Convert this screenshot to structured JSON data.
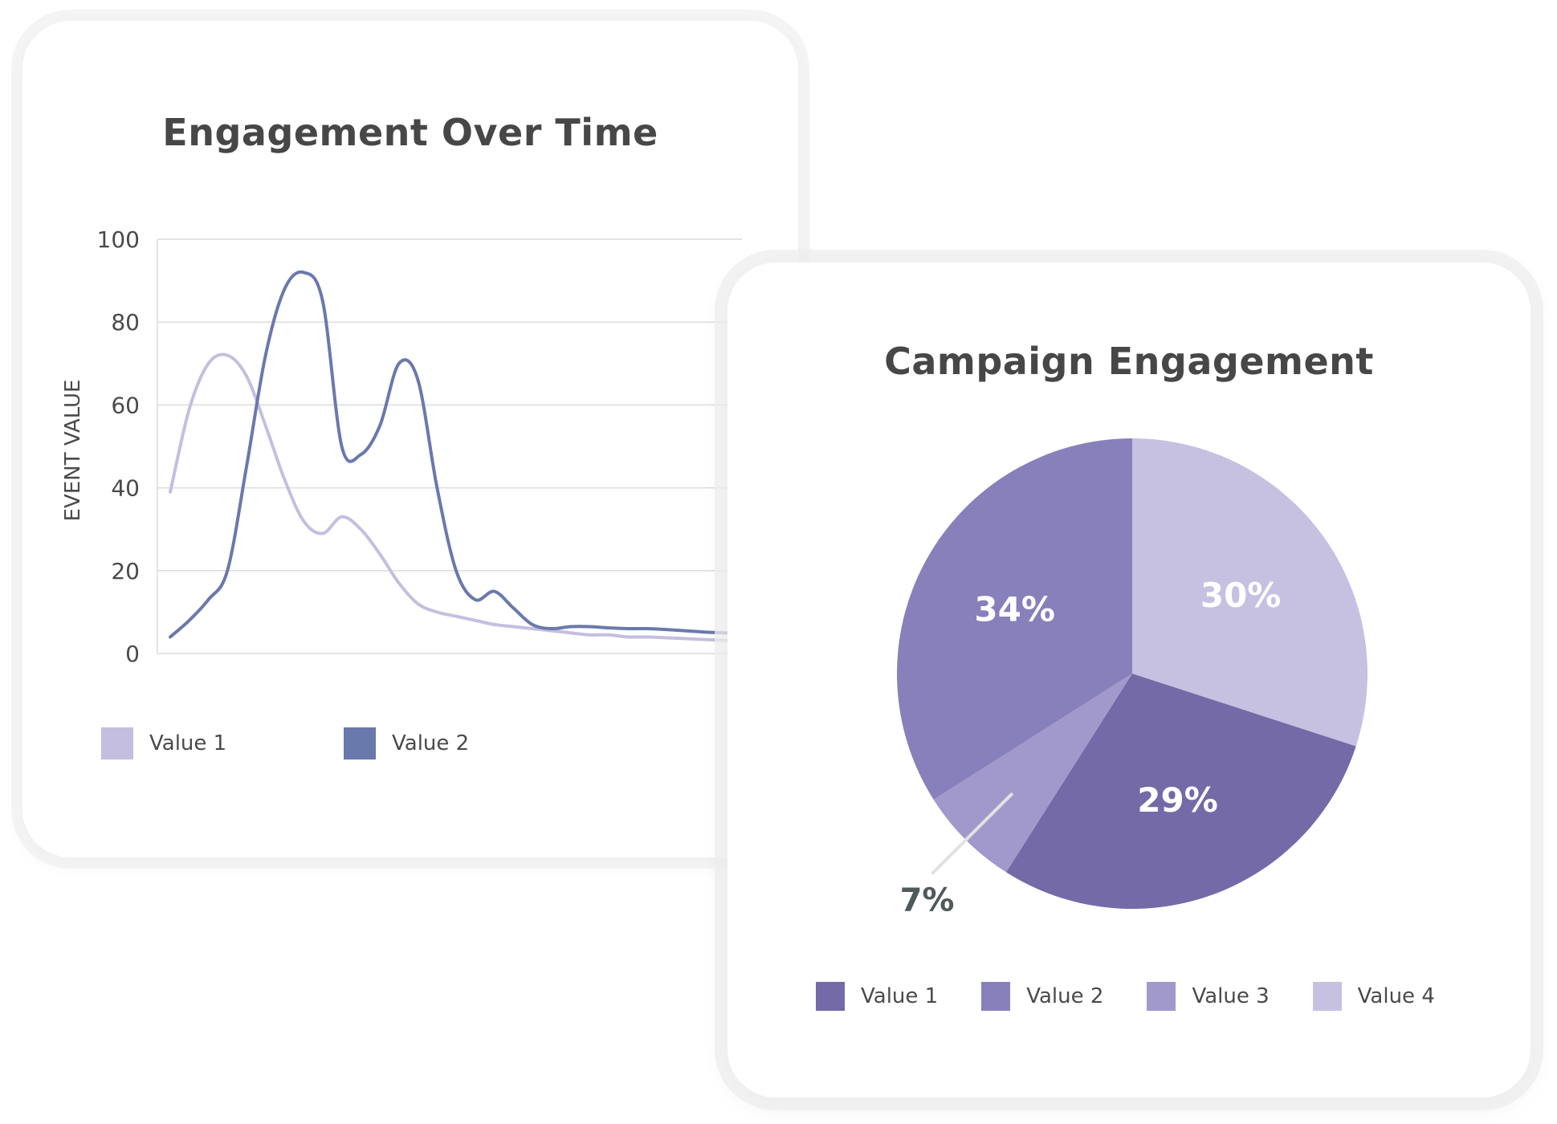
{
  "colors": {
    "value1_line": "#c4bfe0",
    "value2_line": "#6a79ac",
    "pie_value1": "#736aa7",
    "pie_value2": "#8880ba",
    "pie_value3": "#a199cb",
    "pie_value4": "#c6c1e1",
    "gridline": "#dcdcdc",
    "axis_text": "#4a4a4a",
    "title_text": "#474747"
  },
  "chart_data": [
    {
      "type": "line",
      "title": "Engagement Over Time",
      "xlabel": "",
      "ylabel": "EVENT VALUE",
      "ylim": [
        0,
        100
      ],
      "yticks": [
        0,
        20,
        40,
        60,
        80,
        100
      ],
      "grid": true,
      "legend_position": "bottom",
      "x": [
        0,
        1,
        2,
        3,
        4,
        5,
        6,
        7,
        8,
        9,
        10,
        11,
        12,
        13,
        14,
        15,
        16,
        17,
        18,
        19,
        20,
        21,
        22,
        23,
        24,
        25,
        26,
        27,
        28,
        29,
        30
      ],
      "series": [
        {
          "name": "Value 1",
          "values": [
            39,
            59,
            70,
            72,
            67,
            55,
            42,
            32,
            29,
            33,
            30,
            24,
            17,
            12,
            10,
            9,
            8,
            7,
            6.5,
            6,
            5.5,
            5,
            4.5,
            4.5,
            4,
            4,
            3.8,
            3.6,
            3.4,
            3.2,
            3
          ]
        },
        {
          "name": "Value 2",
          "values": [
            4,
            8,
            13,
            20,
            45,
            72,
            88,
            92,
            85,
            50,
            48,
            55,
            70,
            66,
            40,
            20,
            13,
            15,
            11,
            7,
            6,
            6.5,
            6.5,
            6.2,
            6,
            6,
            5.8,
            5.5,
            5.2,
            5,
            5
          ]
        }
      ]
    },
    {
      "type": "pie",
      "title": "Campaign Engagement",
      "legend_position": "bottom",
      "categories": [
        "Value 1",
        "Value 2",
        "Value 3",
        "Value 4"
      ],
      "values": [
        29,
        34,
        7,
        30
      ],
      "labels": [
        "29%",
        "34%",
        "7%",
        "30%"
      ]
    }
  ]
}
